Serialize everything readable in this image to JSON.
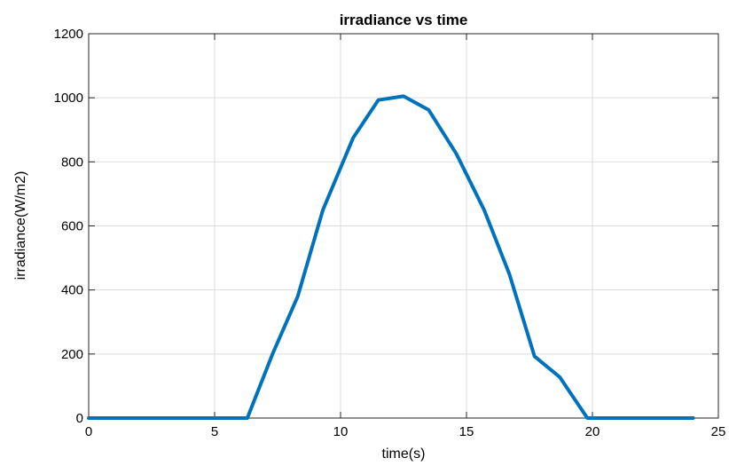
{
  "chart_data": {
    "type": "line",
    "title": "irradiance vs time",
    "xlabel": "time(s)",
    "ylabel": "irradiance(W/m2)",
    "xlim": [
      0,
      25
    ],
    "ylim": [
      0,
      1200
    ],
    "xticks": [
      "0",
      "5",
      "10",
      "15",
      "20",
      "25"
    ],
    "yticks": [
      "0",
      "200",
      "400",
      "600",
      "800",
      "1000",
      "1200"
    ],
    "grid": true,
    "legend": "none",
    "series": [
      {
        "color": "#0072BD",
        "x": [
          0,
          1,
          2,
          3,
          4,
          5,
          6,
          6.3,
          7.3,
          8.3,
          9.3,
          10.5,
          11.5,
          12.5,
          13.5,
          14.6,
          15.7,
          16.7,
          17.7,
          18.7,
          19.8,
          21,
          22,
          23,
          24
        ],
        "y": [
          0,
          0,
          0,
          0,
          0,
          0,
          0,
          0,
          200,
          380,
          650,
          875,
          993,
          1005,
          962,
          825,
          650,
          450,
          193,
          128,
          0,
          0,
          0,
          0,
          0
        ]
      }
    ]
  }
}
